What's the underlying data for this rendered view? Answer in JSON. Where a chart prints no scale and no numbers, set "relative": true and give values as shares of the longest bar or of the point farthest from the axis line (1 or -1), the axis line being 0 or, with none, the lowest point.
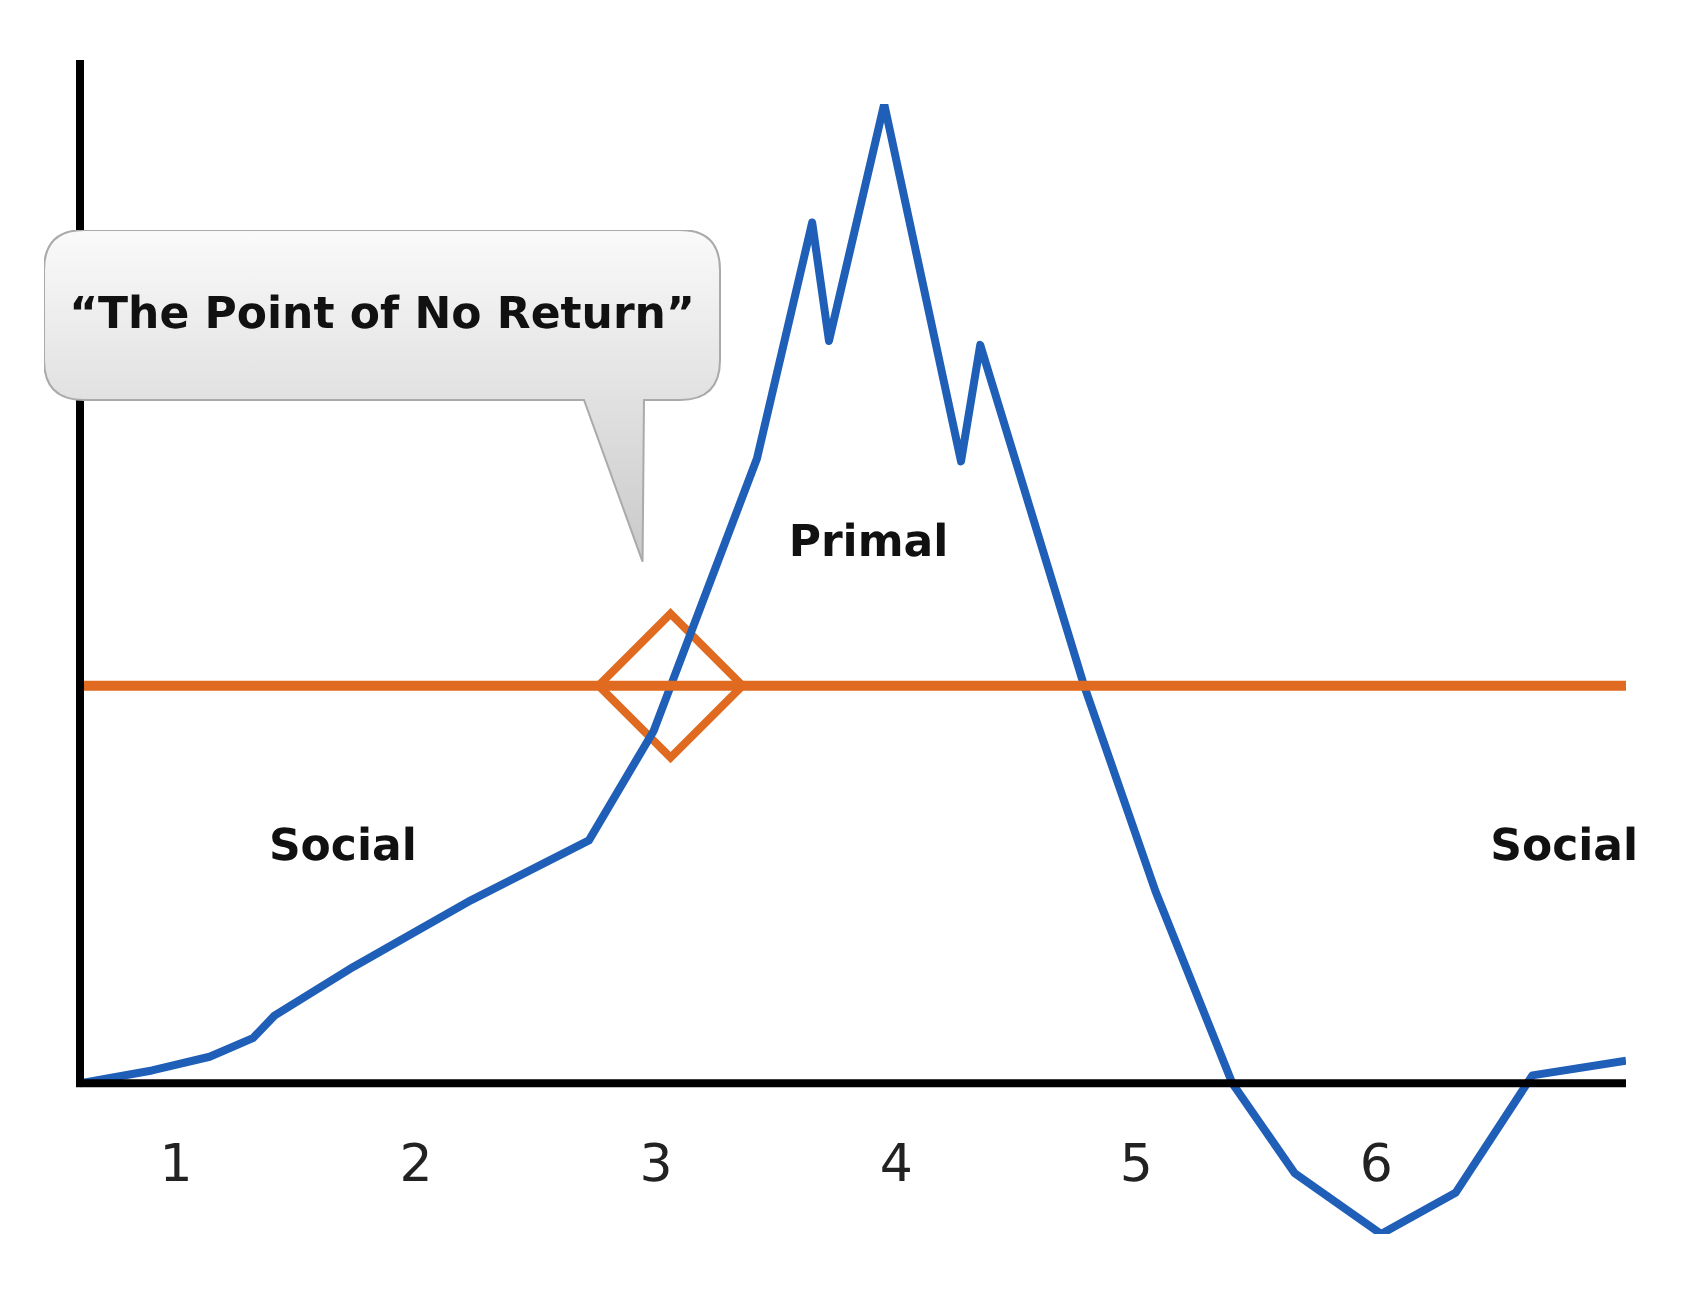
{
  "chart_data": {
    "type": "line",
    "relative": true,
    "x": [
      0.6,
      0.9,
      1.14,
      1.32,
      1.41,
      1.74,
      2.23,
      2.72,
      2.99,
      3.42,
      3.65,
      3.72,
      3.95,
      4.27,
      4.35,
      4.78,
      5.08,
      5.4,
      5.66,
      6.02,
      6.33,
      6.65,
      7.04
    ],
    "series": [
      {
        "color": "#1f5fb8",
        "values": [
          0,
          0.013,
          0.027,
          0.046,
          0.069,
          0.119,
          0.187,
          0.248,
          0.36,
          0.638,
          0.879,
          0.758,
          1,
          0.635,
          0.754,
          0.408,
          0.196,
          0,
          -0.092,
          -0.154,
          -0.112,
          0.008,
          0.023
        ]
      },
      {
        "type": "scatter",
        "color": "#e06a1f",
        "marker": "diamond",
        "x": [
          3.06
        ],
        "values": [
          0.406
        ]
      }
    ],
    "xlim": [
      0.6,
      7.04
    ],
    "xticks": [
      1,
      2,
      3,
      4,
      5,
      6
    ],
    "ref_lines": [
      {
        "axis": "y",
        "value": 0.406,
        "color": "#e06a1f"
      }
    ],
    "annotations": [
      "“The Point of No Return”",
      "Social",
      "Primal",
      "Social"
    ],
    "line_style": "solid"
  }
}
